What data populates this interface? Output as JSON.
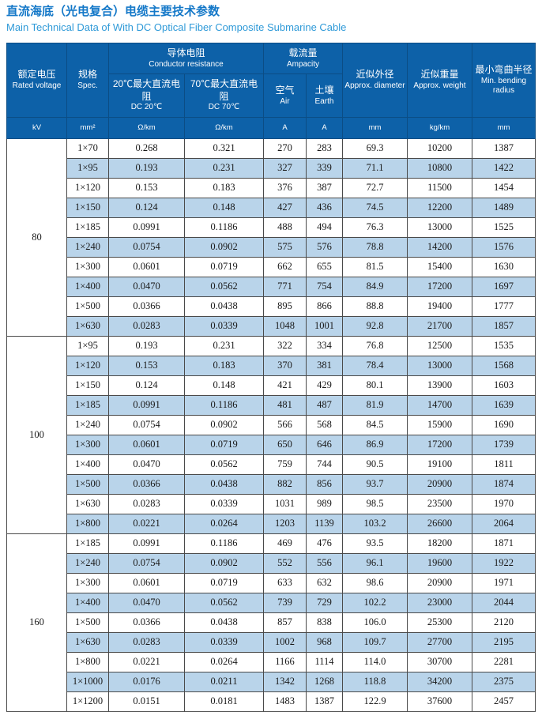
{
  "title": "直流海底（光电复合）电缆主要技术参数",
  "subtitle": "Main Technical Data of With DC Optical Fiber Composite Submarine Cable",
  "colors": {
    "header_bg": "#0d61a8",
    "header_border": "#0b4d85",
    "stripe_bg": "#b9d4ea",
    "title_blue": "#1478c8",
    "subtitle_blue": "#2f9ad8",
    "cell_border": "#4a4a4a"
  },
  "header": {
    "rated_voltage": {
      "zh": "额定电压",
      "en": "Rated voltage",
      "unit": "kV"
    },
    "spec": {
      "zh": "规格",
      "en": "Spec.",
      "unit": "mm²"
    },
    "conductor_resistance": {
      "zh": "导体电阻",
      "en": "Conductor resistance"
    },
    "dc20": {
      "zh": "20℃最大直流电阻",
      "en": "DC 20℃",
      "unit": "Ω/km"
    },
    "dc70": {
      "zh": "70℃最大直流电阻",
      "en": "DC 70℃",
      "unit": "Ω/km"
    },
    "ampacity": {
      "zh": "载流量",
      "en": "Ampacity"
    },
    "air": {
      "zh": "空气",
      "en": "Air",
      "unit": "A"
    },
    "earth": {
      "zh": "土壤",
      "en": "Earth",
      "unit": "A"
    },
    "diameter": {
      "zh": "近似外径",
      "en": "Approx. diameter",
      "unit": "mm"
    },
    "weight": {
      "zh": "近似重量",
      "en": "Approx. weight",
      "unit": "kg/km"
    },
    "radius": {
      "zh": "最小弯曲半径",
      "en": "Min. bending radius",
      "unit": "mm"
    }
  },
  "table": {
    "groups": [
      {
        "voltage": "80",
        "rows": [
          [
            "1×70",
            "0.268",
            "0.321",
            "270",
            "283",
            "69.3",
            "10200",
            "1387"
          ],
          [
            "1×95",
            "0.193",
            "0.231",
            "327",
            "339",
            "71.1",
            "10800",
            "1422"
          ],
          [
            "1×120",
            "0.153",
            "0.183",
            "376",
            "387",
            "72.7",
            "11500",
            "1454"
          ],
          [
            "1×150",
            "0.124",
            "0.148",
            "427",
            "436",
            "74.5",
            "12200",
            "1489"
          ],
          [
            "1×185",
            "0.0991",
            "0.1186",
            "488",
            "494",
            "76.3",
            "13000",
            "1525"
          ],
          [
            "1×240",
            "0.0754",
            "0.0902",
            "575",
            "576",
            "78.8",
            "14200",
            "1576"
          ],
          [
            "1×300",
            "0.0601",
            "0.0719",
            "662",
            "655",
            "81.5",
            "15400",
            "1630"
          ],
          [
            "1×400",
            "0.0470",
            "0.0562",
            "771",
            "754",
            "84.9",
            "17200",
            "1697"
          ],
          [
            "1×500",
            "0.0366",
            "0.0438",
            "895",
            "866",
            "88.8",
            "19400",
            "1777"
          ],
          [
            "1×630",
            "0.0283",
            "0.0339",
            "1048",
            "1001",
            "92.8",
            "21700",
            "1857"
          ]
        ]
      },
      {
        "voltage": "100",
        "rows": [
          [
            "1×95",
            "0.193",
            "0.231",
            "322",
            "334",
            "76.8",
            "12500",
            "1535"
          ],
          [
            "1×120",
            "0.153",
            "0.183",
            "370",
            "381",
            "78.4",
            "13000",
            "1568"
          ],
          [
            "1×150",
            "0.124",
            "0.148",
            "421",
            "429",
            "80.1",
            "13900",
            "1603"
          ],
          [
            "1×185",
            "0.0991",
            "0.1186",
            "481",
            "487",
            "81.9",
            "14700",
            "1639"
          ],
          [
            "1×240",
            "0.0754",
            "0.0902",
            "566",
            "568",
            "84.5",
            "15900",
            "1690"
          ],
          [
            "1×300",
            "0.0601",
            "0.0719",
            "650",
            "646",
            "86.9",
            "17200",
            "1739"
          ],
          [
            "1×400",
            "0.0470",
            "0.0562",
            "759",
            "744",
            "90.5",
            "19100",
            "1811"
          ],
          [
            "1×500",
            "0.0366",
            "0.0438",
            "882",
            "856",
            "93.7",
            "20900",
            "1874"
          ],
          [
            "1×630",
            "0.0283",
            "0.0339",
            "1031",
            "989",
            "98.5",
            "23500",
            "1970"
          ],
          [
            "1×800",
            "0.0221",
            "0.0264",
            "1203",
            "1139",
            "103.2",
            "26600",
            "2064"
          ]
        ]
      },
      {
        "voltage": "160",
        "rows": [
          [
            "1×185",
            "0.0991",
            "0.1186",
            "469",
            "476",
            "93.5",
            "18200",
            "1871"
          ],
          [
            "1×240",
            "0.0754",
            "0.0902",
            "552",
            "556",
            "96.1",
            "19600",
            "1922"
          ],
          [
            "1×300",
            "0.0601",
            "0.0719",
            "633",
            "632",
            "98.6",
            "20900",
            "1971"
          ],
          [
            "1×400",
            "0.0470",
            "0.0562",
            "739",
            "729",
            "102.2",
            "23000",
            "2044"
          ],
          [
            "1×500",
            "0.0366",
            "0.0438",
            "857",
            "838",
            "106.0",
            "25300",
            "2120"
          ],
          [
            "1×630",
            "0.0283",
            "0.0339",
            "1002",
            "968",
            "109.7",
            "27700",
            "2195"
          ],
          [
            "1×800",
            "0.0221",
            "0.0264",
            "1166",
            "1114",
            "114.0",
            "30700",
            "2281"
          ],
          [
            "1×1000",
            "0.0176",
            "0.0211",
            "1342",
            "1268",
            "118.8",
            "34200",
            "2375"
          ],
          [
            "1×1200",
            "0.0151",
            "0.0181",
            "1483",
            "1387",
            "122.9",
            "37600",
            "2457"
          ]
        ]
      }
    ]
  }
}
